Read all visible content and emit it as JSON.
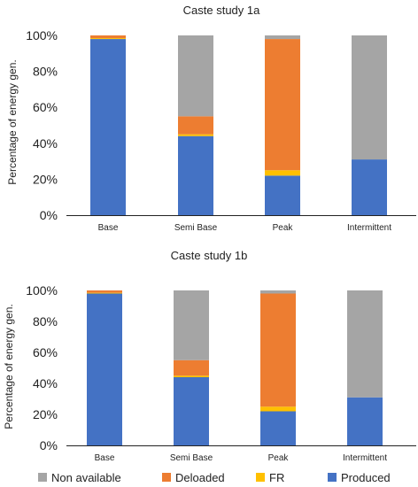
{
  "chart_data": [
    {
      "type": "bar",
      "stacked": true,
      "title": "Caste study 1a",
      "ylabel": "Percentage of energy gen.",
      "xlabel": "",
      "ylim": [
        0,
        100
      ],
      "yticks": [
        "0%",
        "20%",
        "40%",
        "60%",
        "80%",
        "100%"
      ],
      "grid": false,
      "categories": [
        "Base",
        "Semi Base",
        "Peak",
        "Intermittent"
      ],
      "series": [
        {
          "name": "Produced",
          "color": "#4472C4",
          "values": [
            98,
            44,
            22,
            31
          ]
        },
        {
          "name": "FR",
          "color": "#FFC000",
          "values": [
            0.5,
            1,
            3,
            0
          ]
        },
        {
          "name": "Deloaded",
          "color": "#ED7D31",
          "values": [
            1.5,
            10,
            73,
            0
          ]
        },
        {
          "name": "Non available",
          "color": "#A5A5A5",
          "values": [
            0,
            45,
            2,
            69
          ]
        }
      ]
    },
    {
      "type": "bar",
      "stacked": true,
      "title": "Caste study 1b",
      "ylabel": "Percentage of energy gen.",
      "xlabel": "",
      "ylim": [
        0,
        100
      ],
      "yticks": [
        "0%",
        "20%",
        "40%",
        "60%",
        "80%",
        "100%"
      ],
      "grid": false,
      "categories": [
        "Base",
        "Semi Base",
        "Peak",
        "Intermittent"
      ],
      "series": [
        {
          "name": "Produced",
          "color": "#4472C4",
          "values": [
            98,
            44,
            22,
            31
          ]
        },
        {
          "name": "FR",
          "color": "#FFC000",
          "values": [
            0.5,
            1,
            3,
            0
          ]
        },
        {
          "name": "Deloaded",
          "color": "#ED7D31",
          "values": [
            1.5,
            10,
            73,
            0
          ]
        },
        {
          "name": "Non available",
          "color": "#A5A5A5",
          "values": [
            0,
            45,
            2,
            69
          ]
        }
      ]
    }
  ],
  "legend": {
    "placement": "bottom",
    "items": [
      {
        "label": "Non available",
        "color": "#A5A5A5"
      },
      {
        "label": "Deloaded",
        "color": "#ED7D31"
      },
      {
        "label": "FR",
        "color": "#FFC000"
      },
      {
        "label": "Produced",
        "color": "#4472C4"
      }
    ]
  }
}
